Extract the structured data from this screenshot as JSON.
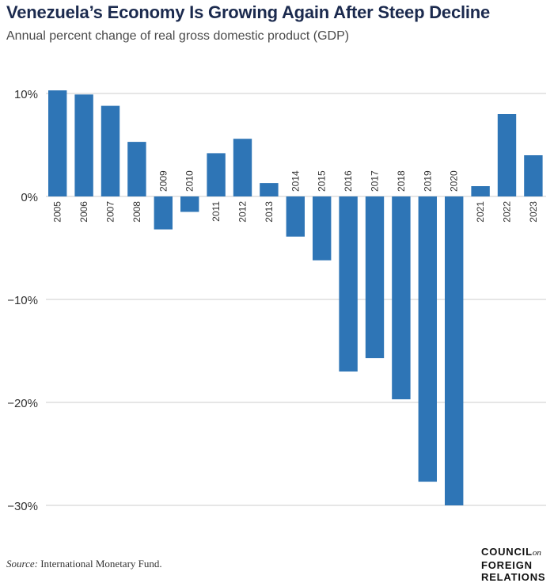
{
  "header": {
    "title": "Venezuela’s Economy Is Growing Again After Steep Decline",
    "subtitle": "Annual percent change of real gross domestic product (GDP)"
  },
  "footer": {
    "source_label": "Source:",
    "source_text": " International Monetary Fund.",
    "logo_line1": "COUNCIL",
    "logo_on": "on",
    "logo_line2": "FOREIGN",
    "logo_line3": "RELATIONS"
  },
  "colors": {
    "bar": "#2e75b6",
    "grid": "#cccccc",
    "axis_text": "#333333"
  },
  "chart_data": {
    "type": "bar",
    "title": "Venezuela’s Economy Is Growing Again After Steep Decline",
    "subtitle": "Annual percent change of real gross domestic product (GDP)",
    "xlabel": "",
    "ylabel": "",
    "ylim": [
      -30,
      10
    ],
    "yticks": [
      10,
      0,
      -10,
      -20,
      -30
    ],
    "ytick_labels": [
      "10%",
      "0%",
      "−10%",
      "−20%",
      "−30%"
    ],
    "grid": true,
    "categories": [
      "2005",
      "2006",
      "2007",
      "2008",
      "2009",
      "2010",
      "2011",
      "2012",
      "2013",
      "2014",
      "2015",
      "2016",
      "2017",
      "2018",
      "2019",
      "2020",
      "2021",
      "2022",
      "2023"
    ],
    "values": [
      10.3,
      9.9,
      8.8,
      5.3,
      -3.2,
      -1.5,
      4.2,
      5.6,
      1.3,
      -3.9,
      -6.2,
      -17.0,
      -15.7,
      -19.7,
      -27.7,
      -30.0,
      1.0,
      8.0,
      4.0
    ]
  }
}
